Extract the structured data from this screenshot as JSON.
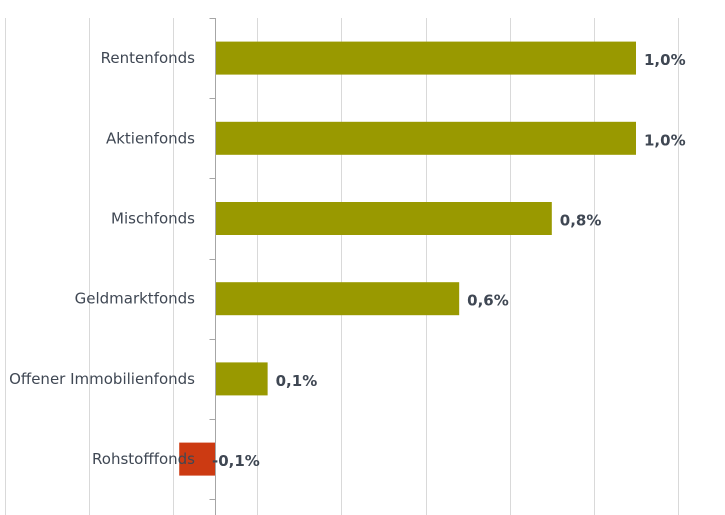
{
  "chart_data": {
    "type": "bar",
    "orientation": "horizontal",
    "categories": [
      "Rentenfonds",
      "Aktienfonds",
      "Mischfonds",
      "Geldmarktfonds",
      "Offener Immobilienfonds",
      "Rohstofffonds"
    ],
    "values": [
      1.0,
      1.0,
      0.8,
      0.58,
      0.125,
      -0.085
    ],
    "value_labels": [
      "1,0%",
      "1,0%",
      "0,8%",
      "0,6%",
      "0,1%",
      "-0,1%"
    ],
    "title": "",
    "xlabel": "",
    "ylabel": "",
    "xlim": [
      -0.5,
      1.2
    ],
    "grid": true,
    "legend": "none",
    "colors": {
      "positive": "#999900",
      "negative": "#cc3a12"
    }
  }
}
